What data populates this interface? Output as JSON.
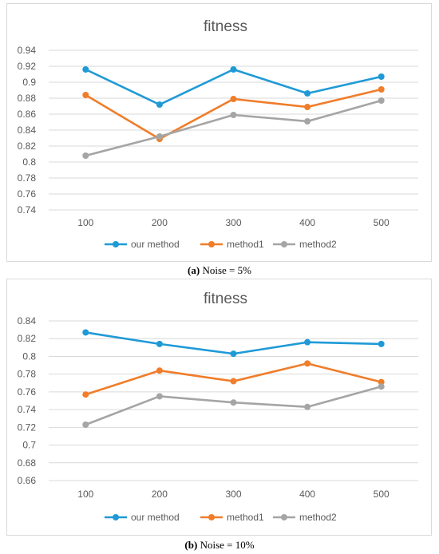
{
  "colors": {
    "series": [
      "#1f9ad6",
      "#f07d2a",
      "#a5a5a5"
    ],
    "grid": "#d9d9d9",
    "text": "#595959"
  },
  "chart_data": [
    {
      "type": "line",
      "title": "fitness",
      "categories": [
        "100",
        "200",
        "300",
        "400",
        "500"
      ],
      "ylim": [
        0.74,
        0.94
      ],
      "yticks": [
        "0.74",
        "0.76",
        "0.78",
        "0.8",
        "0.82",
        "0.84",
        "0.86",
        "0.88",
        "0.9",
        "0.92",
        "0.94"
      ],
      "grid": true,
      "legend": "bottom",
      "series": [
        {
          "name": "our method",
          "values": [
            0.916,
            0.872,
            0.916,
            0.886,
            0.907
          ]
        },
        {
          "name": "method1",
          "values": [
            0.884,
            0.829,
            0.879,
            0.869,
            0.891
          ]
        },
        {
          "name": "method2",
          "values": [
            0.808,
            0.832,
            0.859,
            0.851,
            0.877
          ]
        }
      ],
      "caption": {
        "label": "(a)",
        "text": "Noise = 5%"
      }
    },
    {
      "type": "line",
      "title": "fitness",
      "categories": [
        "100",
        "200",
        "300",
        "400",
        "500"
      ],
      "ylim": [
        0.66,
        0.84
      ],
      "yticks": [
        "0.66",
        "0.68",
        "0.7",
        "0.72",
        "0.74",
        "0.76",
        "0.78",
        "0.8",
        "0.82",
        "0.84"
      ],
      "grid": true,
      "legend": "bottom",
      "series": [
        {
          "name": "our method",
          "values": [
            0.827,
            0.814,
            0.803,
            0.816,
            0.814
          ]
        },
        {
          "name": "method1",
          "values": [
            0.757,
            0.784,
            0.772,
            0.792,
            0.771
          ]
        },
        {
          "name": "method2",
          "values": [
            0.723,
            0.755,
            0.748,
            0.743,
            0.766
          ]
        }
      ],
      "caption": {
        "label": "(b)",
        "text": "Noise = 10%"
      }
    }
  ]
}
